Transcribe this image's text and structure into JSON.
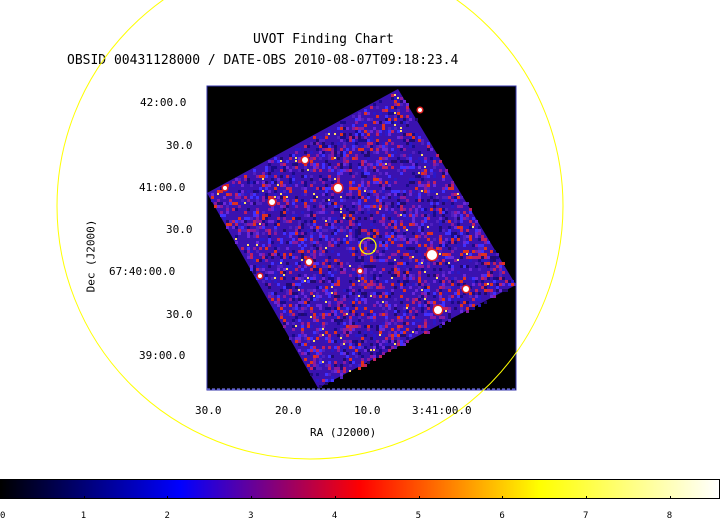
{
  "chart_data": {
    "type": "heatmap",
    "title": "UVOT Finding Chart",
    "subtitle": "OBSID 00431128000 / DATE-OBS 2010-08-07T09:18:23.4",
    "xlabel": "RA (J2000)",
    "ylabel": "Dec (J2000)",
    "x_ticks": [
      "30.0",
      "20.0",
      "10.0",
      "3:41:00.0"
    ],
    "y_ticks": [
      "42:00.0",
      "30.0",
      "41:00.0",
      "30.0",
      "67:40:00.0",
      "30.0",
      "39:00.0"
    ],
    "colorbar": {
      "ticks": [
        "0",
        "1",
        "2",
        "3",
        "4",
        "5",
        "6",
        "7",
        "8"
      ],
      "range": [
        0,
        8.6
      ],
      "colors": [
        "#000000",
        "#0000ff",
        "#ff0000",
        "#ffff00",
        "#ffffff"
      ]
    },
    "overlays": [
      "large yellow circle",
      "small yellow source circle"
    ],
    "colors": {
      "overlay": "#ffff00",
      "frame_border": "#3333aa",
      "background": "#000000"
    }
  }
}
